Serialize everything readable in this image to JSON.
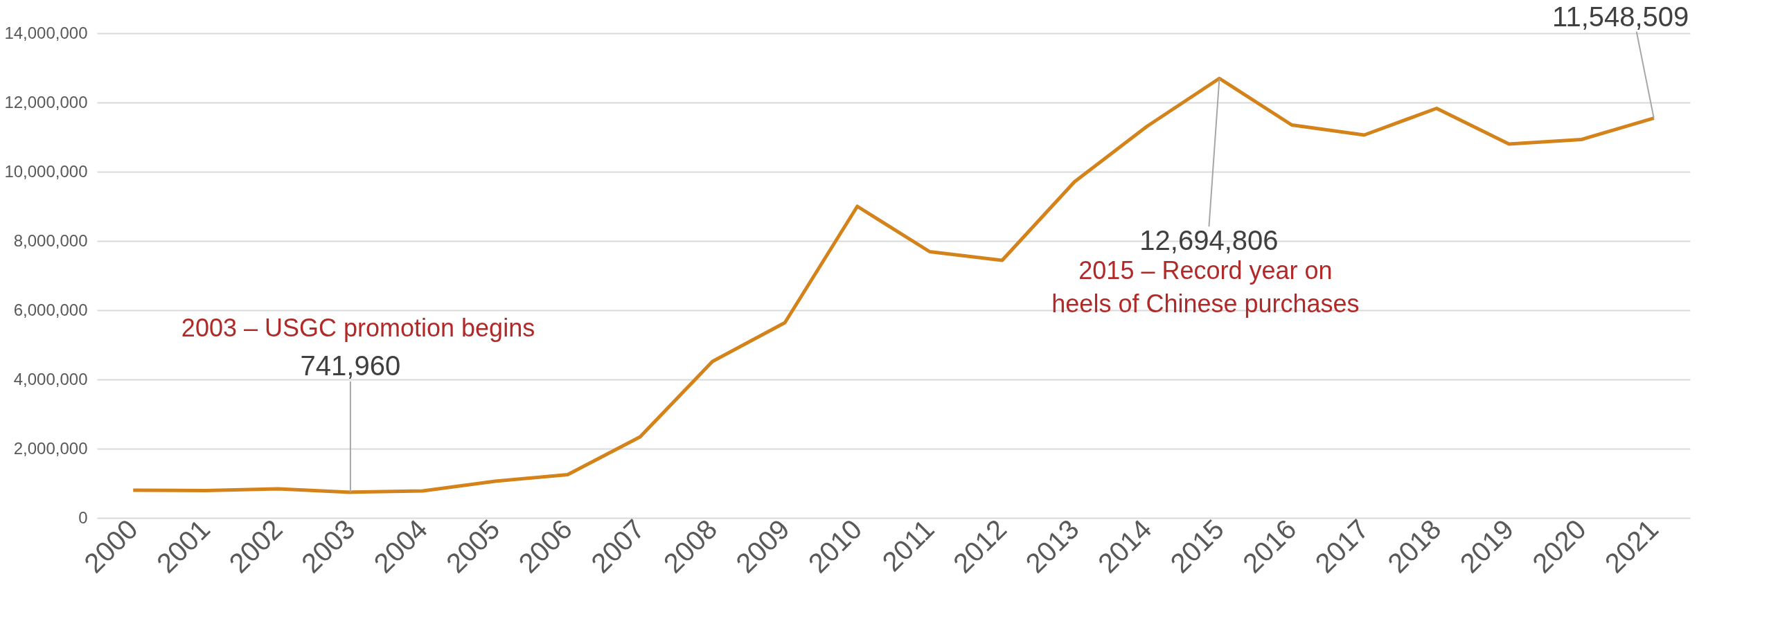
{
  "chart_data": {
    "type": "line",
    "categories": [
      "2000",
      "2001",
      "2002",
      "2003",
      "2004",
      "2005",
      "2006",
      "2007",
      "2008",
      "2009",
      "2010",
      "2011",
      "2012",
      "2013",
      "2014",
      "2015",
      "2016",
      "2017",
      "2018",
      "2019",
      "2020",
      "2021"
    ],
    "series": [
      {
        "color": "#d4821a",
        "values": [
          800000,
          790000,
          840000,
          741960,
          780000,
          1060000,
          1250000,
          2340000,
          4520000,
          5640000,
          9000000,
          7690000,
          7440000,
          9710000,
          11310000,
          12694806,
          11350000,
          11060000,
          11830000,
          10800000,
          10930000,
          11548509
        ],
        "value_labels": [
          null,
          null,
          null,
          "741,960",
          null,
          null,
          null,
          null,
          null,
          null,
          null,
          null,
          null,
          null,
          null,
          "12,694,806",
          null,
          null,
          null,
          null,
          null,
          "11,548,509"
        ]
      }
    ],
    "ylim": [
      0,
      14000000
    ],
    "yticks": [
      {
        "value": 0,
        "label": "0"
      },
      {
        "value": 2000000,
        "label": "2,000,000"
      },
      {
        "value": 4000000,
        "label": "4,000,000"
      },
      {
        "value": 6000000,
        "label": "6,000,000"
      },
      {
        "value": 8000000,
        "label": "8,000,000"
      },
      {
        "value": 10000000,
        "label": "10,000,000"
      },
      {
        "value": 12000000,
        "label": "12,000,000"
      },
      {
        "value": 14000000,
        "label": "14,000,000"
      }
    ],
    "grid": "y",
    "marker": "none",
    "line_style": "solid",
    "annotations": [
      "2003 – USGC promotion begins",
      {
        "text": "2015 – Record year on\nheels of Chinese purchases",
        "x": "2015",
        "y": 12694806
      }
    ]
  }
}
